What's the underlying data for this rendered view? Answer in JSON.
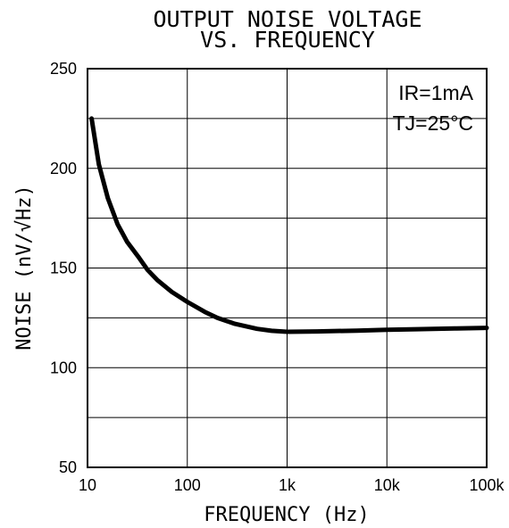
{
  "chart_data": {
    "type": "line",
    "title_lines": [
      "OUTPUT NOISE VOLTAGE",
      "VS. FREQUENCY"
    ],
    "xlabel": "FREQUENCY (Hz)",
    "ylabel": "NOISE (nV/√Hz)",
    "x_scale": "log",
    "xlim": [
      10,
      100000
    ],
    "ylim": [
      50,
      250
    ],
    "x_ticks": [
      10,
      100,
      1000,
      10000,
      100000
    ],
    "x_tick_labels": [
      "10",
      "100",
      "1k",
      "10k",
      "100k"
    ],
    "y_ticks": [
      50,
      100,
      150,
      200,
      250
    ],
    "y_tick_labels": [
      "50",
      "100",
      "150",
      "200",
      "250"
    ],
    "y_gridlines": [
      50,
      75,
      100,
      125,
      150,
      175,
      200,
      225,
      250
    ],
    "grid": true,
    "annotations": [
      "IR=1mA",
      "TJ=25°C"
    ],
    "series": [
      {
        "x": [
          11,
          13,
          16,
          20,
          25,
          33,
          40,
          50,
          70,
          100,
          150,
          200,
          300,
          500,
          700,
          1000,
          2000,
          5000,
          10000,
          20000,
          50000,
          100000
        ],
        "y": [
          225,
          202,
          185,
          172,
          163,
          155,
          149,
          144,
          138,
          133,
          128,
          125,
          122,
          119.5,
          118.5,
          118,
          118.2,
          118.6,
          119,
          119.3,
          119.7,
          120
        ]
      }
    ]
  }
}
